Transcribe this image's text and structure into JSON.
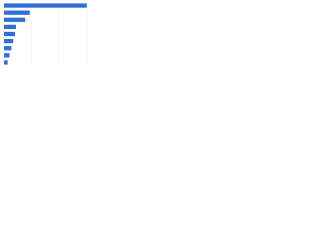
{
  "chart_data": {
    "type": "hbar",
    "categories": [
      null,
      null,
      null,
      null,
      null,
      null,
      null,
      null,
      null
    ],
    "values": [
      90,
      28,
      23,
      13,
      12,
      10,
      8,
      6,
      4
    ],
    "color": "#2e6fd8",
    "xlim": [
      0,
      100
    ],
    "xticks": [
      0,
      30,
      60,
      90
    ],
    "grid": true
  }
}
